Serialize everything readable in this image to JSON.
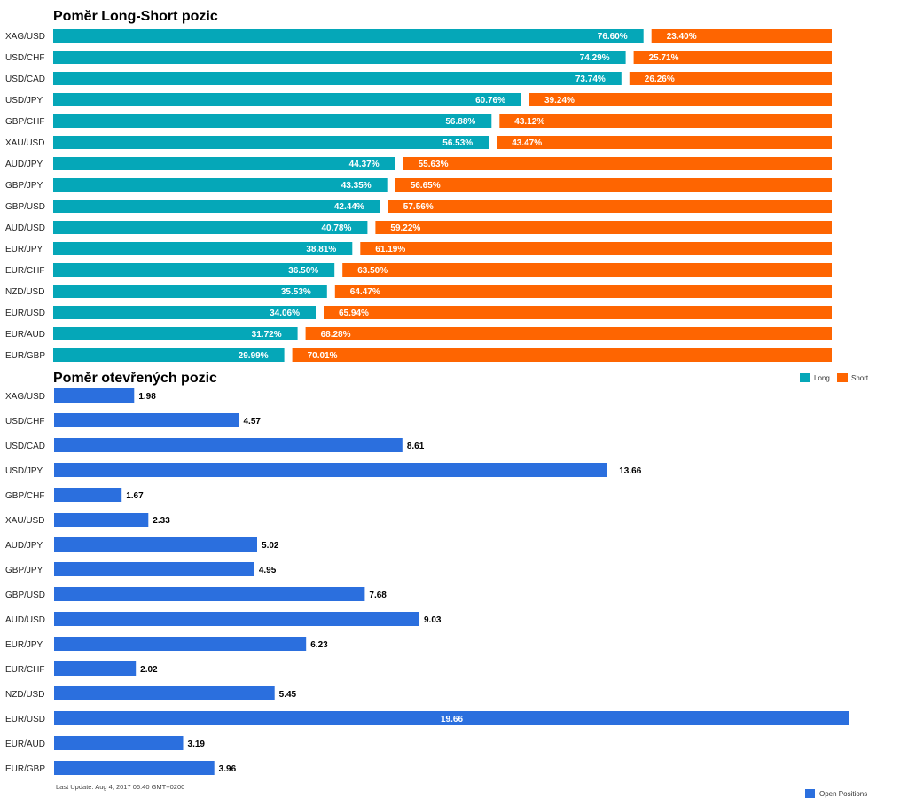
{
  "colors": {
    "long": "#05a7b8",
    "short": "#fe6501",
    "open": "#2b6fde"
  },
  "chart_data": [
    {
      "type": "bar",
      "title": "Poměr Long-Short pozic",
      "categories": [
        "XAG/USD",
        "USD/CHF",
        "USD/CAD",
        "USD/JPY",
        "GBP/CHF",
        "XAU/USD",
        "AUD/JPY",
        "GBP/JPY",
        "GBP/USD",
        "AUD/USD",
        "EUR/JPY",
        "EUR/CHF",
        "NZD/USD",
        "EUR/USD",
        "EUR/AUD",
        "EUR/GBP"
      ],
      "series": [
        {
          "name": "Long",
          "values": [
            76.6,
            74.29,
            73.74,
            60.76,
            56.88,
            56.53,
            44.37,
            43.35,
            42.44,
            40.78,
            38.81,
            36.5,
            35.53,
            34.06,
            31.72,
            29.99
          ],
          "labels": [
            "76.60%",
            "74.29%",
            "73.74%",
            "60.76%",
            "56.88%",
            "56.53%",
            "44.37%",
            "43.35%",
            "42.44%",
            "40.78%",
            "38.81%",
            "36.50%",
            "35.53%",
            "34.06%",
            "31.72%",
            "29.99%"
          ]
        },
        {
          "name": "Short",
          "values": [
            23.4,
            25.71,
            26.26,
            39.24,
            43.12,
            43.47,
            55.63,
            56.65,
            57.56,
            59.22,
            61.19,
            63.5,
            64.47,
            65.94,
            68.28,
            70.01
          ],
          "labels": [
            "23.40%",
            "25.71%",
            "26.26%",
            "39.24%",
            "43.12%",
            "43.47%",
            "55.63%",
            "56.65%",
            "57.56%",
            "59.22%",
            "61.19%",
            "63.50%",
            "64.47%",
            "65.94%",
            "68.28%",
            "70.01%"
          ]
        }
      ],
      "legend": [
        "Long",
        "Short"
      ],
      "legend_position": "bottom-right"
    },
    {
      "type": "bar",
      "title": "Poměr otevřených pozic",
      "categories": [
        "XAG/USD",
        "USD/CHF",
        "USD/CAD",
        "USD/JPY",
        "GBP/CHF",
        "XAU/USD",
        "AUD/JPY",
        "GBP/JPY",
        "GBP/USD",
        "AUD/USD",
        "EUR/JPY",
        "EUR/CHF",
        "NZD/USD",
        "EUR/USD",
        "EUR/AUD",
        "EUR/GBP"
      ],
      "series": [
        {
          "name": "Open Positions",
          "values": [
            1.98,
            4.57,
            8.61,
            13.66,
            1.67,
            2.33,
            5.02,
            4.95,
            7.68,
            9.03,
            6.23,
            2.02,
            5.45,
            19.66,
            3.19,
            3.96
          ],
          "labels": [
            "1.98",
            "4.57",
            "8.61",
            "13.66",
            "1.67",
            "2.33",
            "5.02",
            "4.95",
            "7.68",
            "9.03",
            "6.23",
            "2.02",
            "5.45",
            "19.66",
            "3.19",
            "3.96"
          ]
        }
      ],
      "legend": [
        "Open Positions"
      ],
      "legend_position": "bottom-right",
      "footnote": "Last Update: Aug 4, 2017 06:40 GMT+0200"
    }
  ]
}
